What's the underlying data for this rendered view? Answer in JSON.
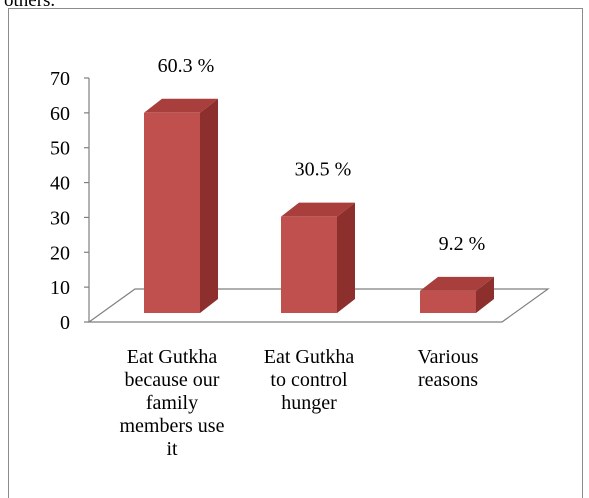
{
  "page_text": "others.",
  "colors": {
    "bar_front": "#c0504d",
    "bar_side": "#8c2f2d",
    "bar_top": "#a83f3c",
    "axis": "#7f7f7f"
  },
  "chart_data": {
    "type": "bar",
    "title": "",
    "xlabel": "",
    "ylabel": "",
    "categories": [
      "Eat Gutkha because our family members use it",
      "Eat Gutkha to control hunger",
      "Various reasons"
    ],
    "category_lines": [
      [
        "Eat Gutkha",
        "because our",
        "family",
        "members use",
        "it"
      ],
      [
        "Eat Gutkha",
        "to control",
        "hunger"
      ],
      [
        "Various",
        "reasons"
      ]
    ],
    "values": [
      60.3,
      30.5,
      9.2
    ],
    "data_labels": [
      "60.3 %",
      "30.5 %",
      "9.2 %"
    ],
    "ylim": [
      0,
      70
    ],
    "yticks": [
      0,
      10,
      20,
      30,
      40,
      50,
      60,
      70
    ],
    "grid": false,
    "legend": "none",
    "style": "3d-column"
  }
}
